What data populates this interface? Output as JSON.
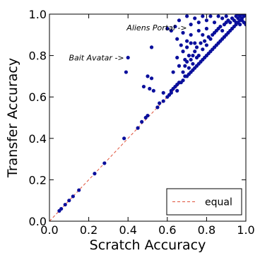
{
  "chart_data": {
    "type": "scatter",
    "xlabel": "Scratch Accuracy",
    "ylabel": "Transfer Accuracy",
    "xlim": [
      0.0,
      1.0
    ],
    "ylim": [
      0.0,
      1.0
    ],
    "x_ticks": [
      "0.0",
      "0.2",
      "0.4",
      "0.6",
      "0.8",
      "1.0"
    ],
    "y_ticks": [
      "0.0",
      "0.2",
      "0.4",
      "0.6",
      "0.8",
      "1.0"
    ],
    "grid": false,
    "legend": {
      "placement": "bottom-right",
      "entries": [
        {
          "label": "equal",
          "style": "dashed",
          "color": "#e0523a"
        }
      ]
    },
    "reference_line": {
      "label": "equal",
      "from": [
        0.0,
        0.0
      ],
      "to": [
        1.0,
        1.0
      ],
      "color": "#e0523a",
      "style": "dashed"
    },
    "point_color": "#0a0f9c",
    "annotations": [
      {
        "text": "Aliens Portal ->",
        "x": 0.7,
        "y": 0.935,
        "anchor": "end"
      },
      {
        "text": "Bait Avatar ->",
        "x": 0.38,
        "y": 0.79,
        "anchor": "end"
      }
    ],
    "points": [
      [
        0.05,
        0.05
      ],
      [
        0.06,
        0.06
      ],
      [
        0.08,
        0.08
      ],
      [
        0.1,
        0.1
      ],
      [
        0.12,
        0.12
      ],
      [
        0.15,
        0.15
      ],
      [
        0.23,
        0.23
      ],
      [
        0.28,
        0.28
      ],
      [
        0.38,
        0.4
      ],
      [
        0.39,
        0.72
      ],
      [
        0.4,
        0.79
      ],
      [
        0.45,
        0.45
      ],
      [
        0.47,
        0.48
      ],
      [
        0.49,
        0.5
      ],
      [
        0.5,
        0.51
      ],
      [
        0.48,
        0.65
      ],
      [
        0.5,
        0.7
      ],
      [
        0.51,
        0.64
      ],
      [
        0.52,
        0.84
      ],
      [
        0.52,
        0.69
      ],
      [
        0.53,
        0.63
      ],
      [
        0.55,
        0.55
      ],
      [
        0.56,
        0.57
      ],
      [
        0.58,
        0.58
      ],
      [
        0.58,
        0.62
      ],
      [
        0.6,
        0.6
      ],
      [
        0.61,
        0.61
      ],
      [
        0.62,
        0.62
      ],
      [
        0.62,
        0.63
      ],
      [
        0.63,
        0.64
      ],
      [
        0.64,
        0.65
      ],
      [
        0.65,
        0.66
      ],
      [
        0.65,
        0.63
      ],
      [
        0.66,
        0.67
      ],
      [
        0.67,
        0.67
      ],
      [
        0.68,
        0.68
      ],
      [
        0.69,
        0.7
      ],
      [
        0.7,
        0.7
      ],
      [
        0.71,
        0.71
      ],
      [
        0.72,
        0.72
      ],
      [
        0.73,
        0.73
      ],
      [
        0.74,
        0.74
      ],
      [
        0.75,
        0.75
      ],
      [
        0.76,
        0.76
      ],
      [
        0.77,
        0.77
      ],
      [
        0.78,
        0.78
      ],
      [
        0.79,
        0.79
      ],
      [
        0.8,
        0.8
      ],
      [
        0.81,
        0.81
      ],
      [
        0.82,
        0.82
      ],
      [
        0.83,
        0.83
      ],
      [
        0.84,
        0.84
      ],
      [
        0.85,
        0.85
      ],
      [
        0.86,
        0.86
      ],
      [
        0.87,
        0.87
      ],
      [
        0.88,
        0.88
      ],
      [
        0.89,
        0.89
      ],
      [
        0.9,
        0.9
      ],
      [
        0.91,
        0.91
      ],
      [
        0.92,
        0.92
      ],
      [
        0.93,
        0.93
      ],
      [
        0.94,
        0.94
      ],
      [
        0.95,
        0.95
      ],
      [
        0.96,
        0.96
      ],
      [
        0.97,
        0.97
      ],
      [
        0.98,
        0.98
      ],
      [
        0.99,
        0.99
      ],
      [
        1.0,
        1.0
      ],
      [
        0.68,
        0.72
      ],
      [
        0.69,
        0.75
      ],
      [
        0.7,
        0.77
      ],
      [
        0.71,
        0.8
      ],
      [
        0.72,
        0.78
      ],
      [
        0.74,
        0.82
      ],
      [
        0.73,
        0.76
      ],
      [
        0.75,
        0.84
      ],
      [
        0.76,
        0.8
      ],
      [
        0.77,
        0.86
      ],
      [
        0.78,
        0.83
      ],
      [
        0.79,
        0.87
      ],
      [
        0.8,
        0.85
      ],
      [
        0.81,
        0.89
      ],
      [
        0.82,
        0.88
      ],
      [
        0.83,
        0.9
      ],
      [
        0.84,
        0.91
      ],
      [
        0.85,
        0.92
      ],
      [
        0.86,
        0.93
      ],
      [
        0.87,
        0.94
      ],
      [
        0.88,
        0.92
      ],
      [
        0.89,
        0.95
      ],
      [
        0.9,
        0.96
      ],
      [
        0.91,
        0.97
      ],
      [
        0.92,
        0.96
      ],
      [
        0.93,
        0.98
      ],
      [
        0.94,
        0.97
      ],
      [
        0.95,
        0.99
      ],
      [
        0.96,
        0.98
      ],
      [
        0.97,
        0.99
      ],
      [
        0.98,
        0.97
      ],
      [
        0.99,
        0.96
      ],
      [
        1.0,
        0.95
      ],
      [
        0.97,
        0.95
      ],
      [
        0.95,
        0.96
      ],
      [
        0.99,
        1.0
      ],
      [
        0.98,
        1.0
      ],
      [
        0.96,
        1.0
      ],
      [
        0.6,
        0.93
      ],
      [
        0.62,
        0.92
      ],
      [
        0.64,
        0.94
      ],
      [
        0.66,
        0.97
      ],
      [
        0.68,
        0.91
      ],
      [
        0.7,
        0.99
      ],
      [
        0.72,
        0.95
      ],
      [
        0.74,
        0.98
      ],
      [
        0.76,
        0.96
      ],
      [
        0.78,
        0.99
      ],
      [
        0.8,
        0.97
      ],
      [
        0.82,
        0.99
      ],
      [
        0.84,
        0.96
      ],
      [
        0.86,
        0.99
      ],
      [
        0.88,
        0.98
      ],
      [
        0.9,
        0.99
      ],
      [
        0.65,
        0.88
      ],
      [
        0.67,
        0.85
      ],
      [
        0.7,
        0.87
      ],
      [
        0.72,
        0.9
      ],
      [
        0.74,
        0.86
      ],
      [
        0.76,
        0.92
      ],
      [
        0.78,
        0.9
      ],
      [
        0.8,
        0.93
      ],
      [
        0.65,
        0.79
      ],
      [
        0.68,
        0.82
      ],
      [
        0.7,
        0.84
      ],
      [
        0.72,
        0.86
      ],
      [
        0.63,
        0.72
      ],
      [
        0.66,
        0.75
      ],
      [
        0.69,
        0.78
      ],
      [
        0.71,
        0.74
      ],
      [
        0.73,
        0.8
      ],
      [
        0.75,
        0.79
      ]
    ]
  }
}
